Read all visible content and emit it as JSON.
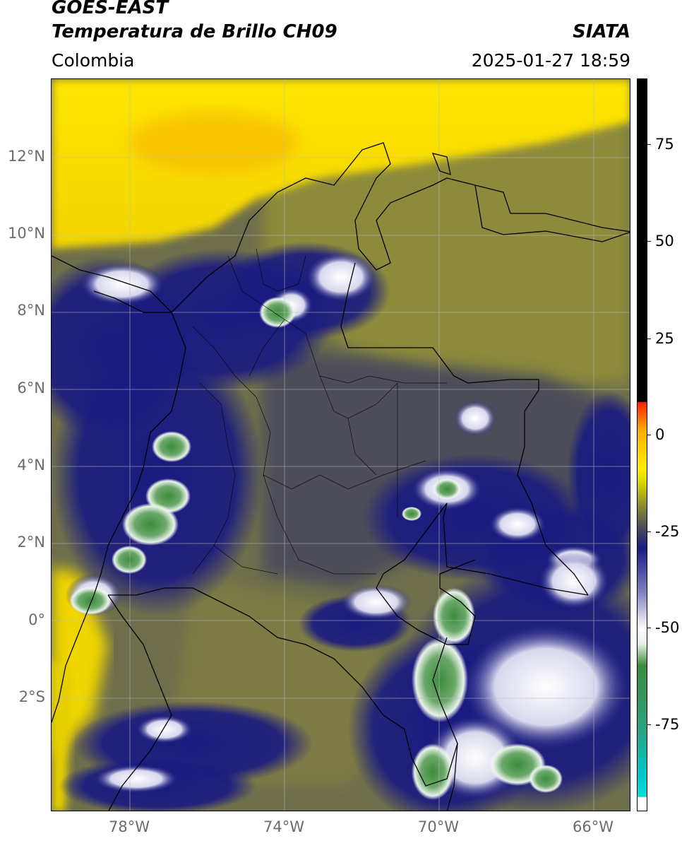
{
  "header": {
    "satellite": "GOES-EAST",
    "product": "Temperatura de Brillo CH09",
    "region": "Colombia",
    "agency": "SIATA",
    "datetime": "2025-01-27 18:59"
  },
  "map": {
    "lat_ticks": [
      "12°N",
      "10°N",
      "8°N",
      "6°N",
      "4°N",
      "2°N",
      "0°",
      "2°S"
    ],
    "lon_ticks": [
      "78°W",
      "74°W",
      "70°W",
      "66°W"
    ],
    "colors": {
      "warm_yellow": "#ffee00",
      "orange": "#f7b000",
      "olive": "#8f8f2a",
      "gray": "#505058",
      "navy": "#1a1a80",
      "white": "#f4f4f4",
      "green": "#3c8c3c",
      "border": "#000000"
    }
  },
  "colorbar": {
    "ticks": [
      "75",
      "50",
      "25",
      "0",
      "-25",
      "-50",
      "-75"
    ],
    "colors": [
      "#00d8d8",
      "#2e9e7a",
      "#3c8c3c",
      "#e8f2e8",
      "#ffffff",
      "#7f7fbf",
      "#1a1a80",
      "#505058",
      "#8f8f2a",
      "#ffee00",
      "#f7b000",
      "#ff0000",
      "#000000"
    ]
  }
}
